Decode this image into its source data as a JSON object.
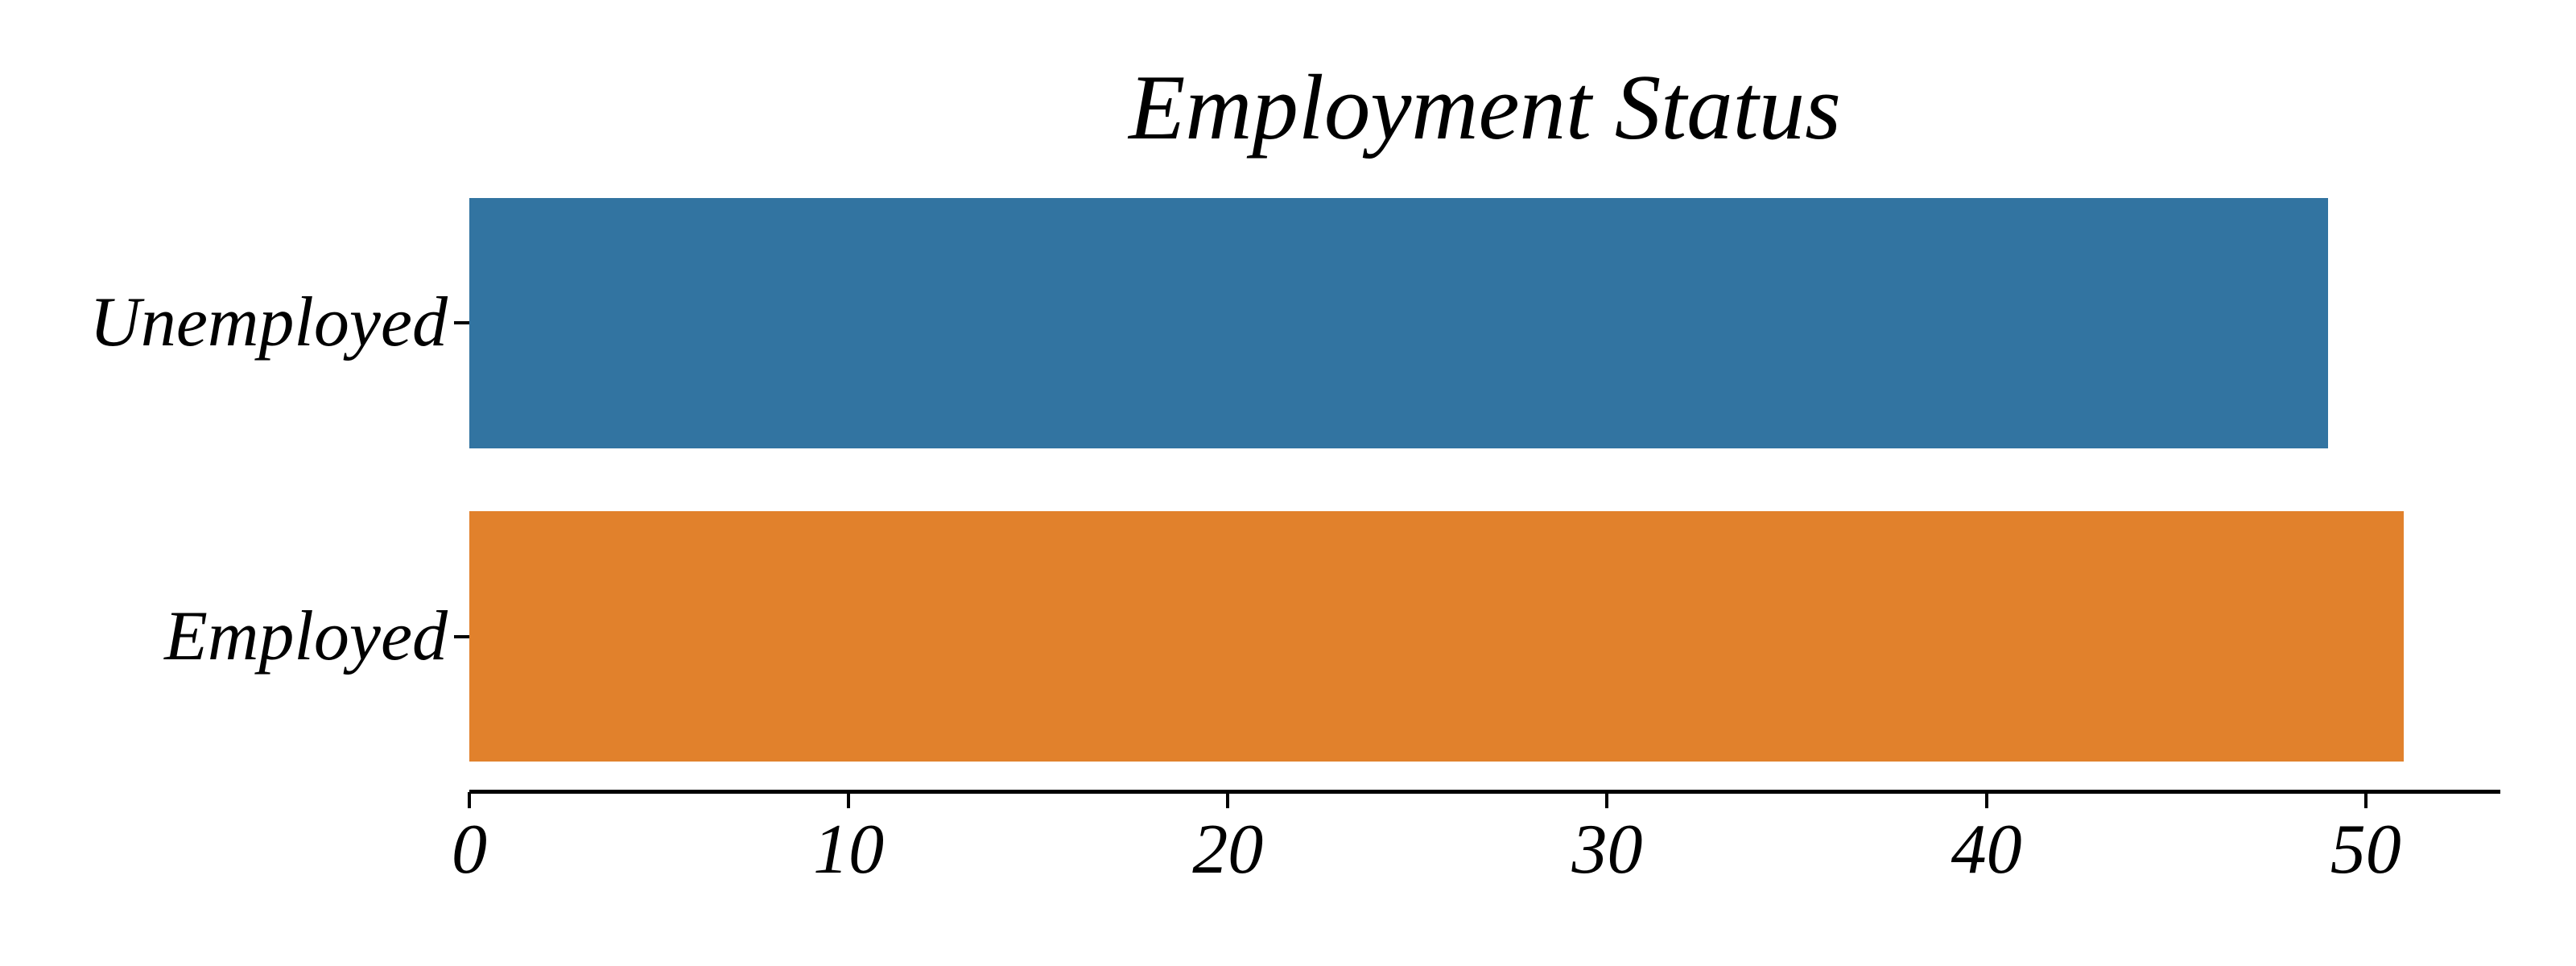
{
  "chart_data": {
    "type": "bar",
    "orientation": "horizontal",
    "title": "Employment Status",
    "categories": [
      "Unemployed",
      "Employed"
    ],
    "values": [
      49,
      51
    ],
    "bar_colors": [
      "#3274a1",
      "#e1812c"
    ],
    "xlabel": "",
    "ylabel": "",
    "xlim": [
      0,
      53.55
    ],
    "xticks": [
      "0",
      "10",
      "20",
      "30",
      "40",
      "50"
    ],
    "xtick_values": [
      0,
      10,
      20,
      30,
      40,
      50
    ],
    "grid": false,
    "legend": "none",
    "axis_color": "#000000",
    "text_color": "#000000",
    "background_color": "#ffffff"
  }
}
